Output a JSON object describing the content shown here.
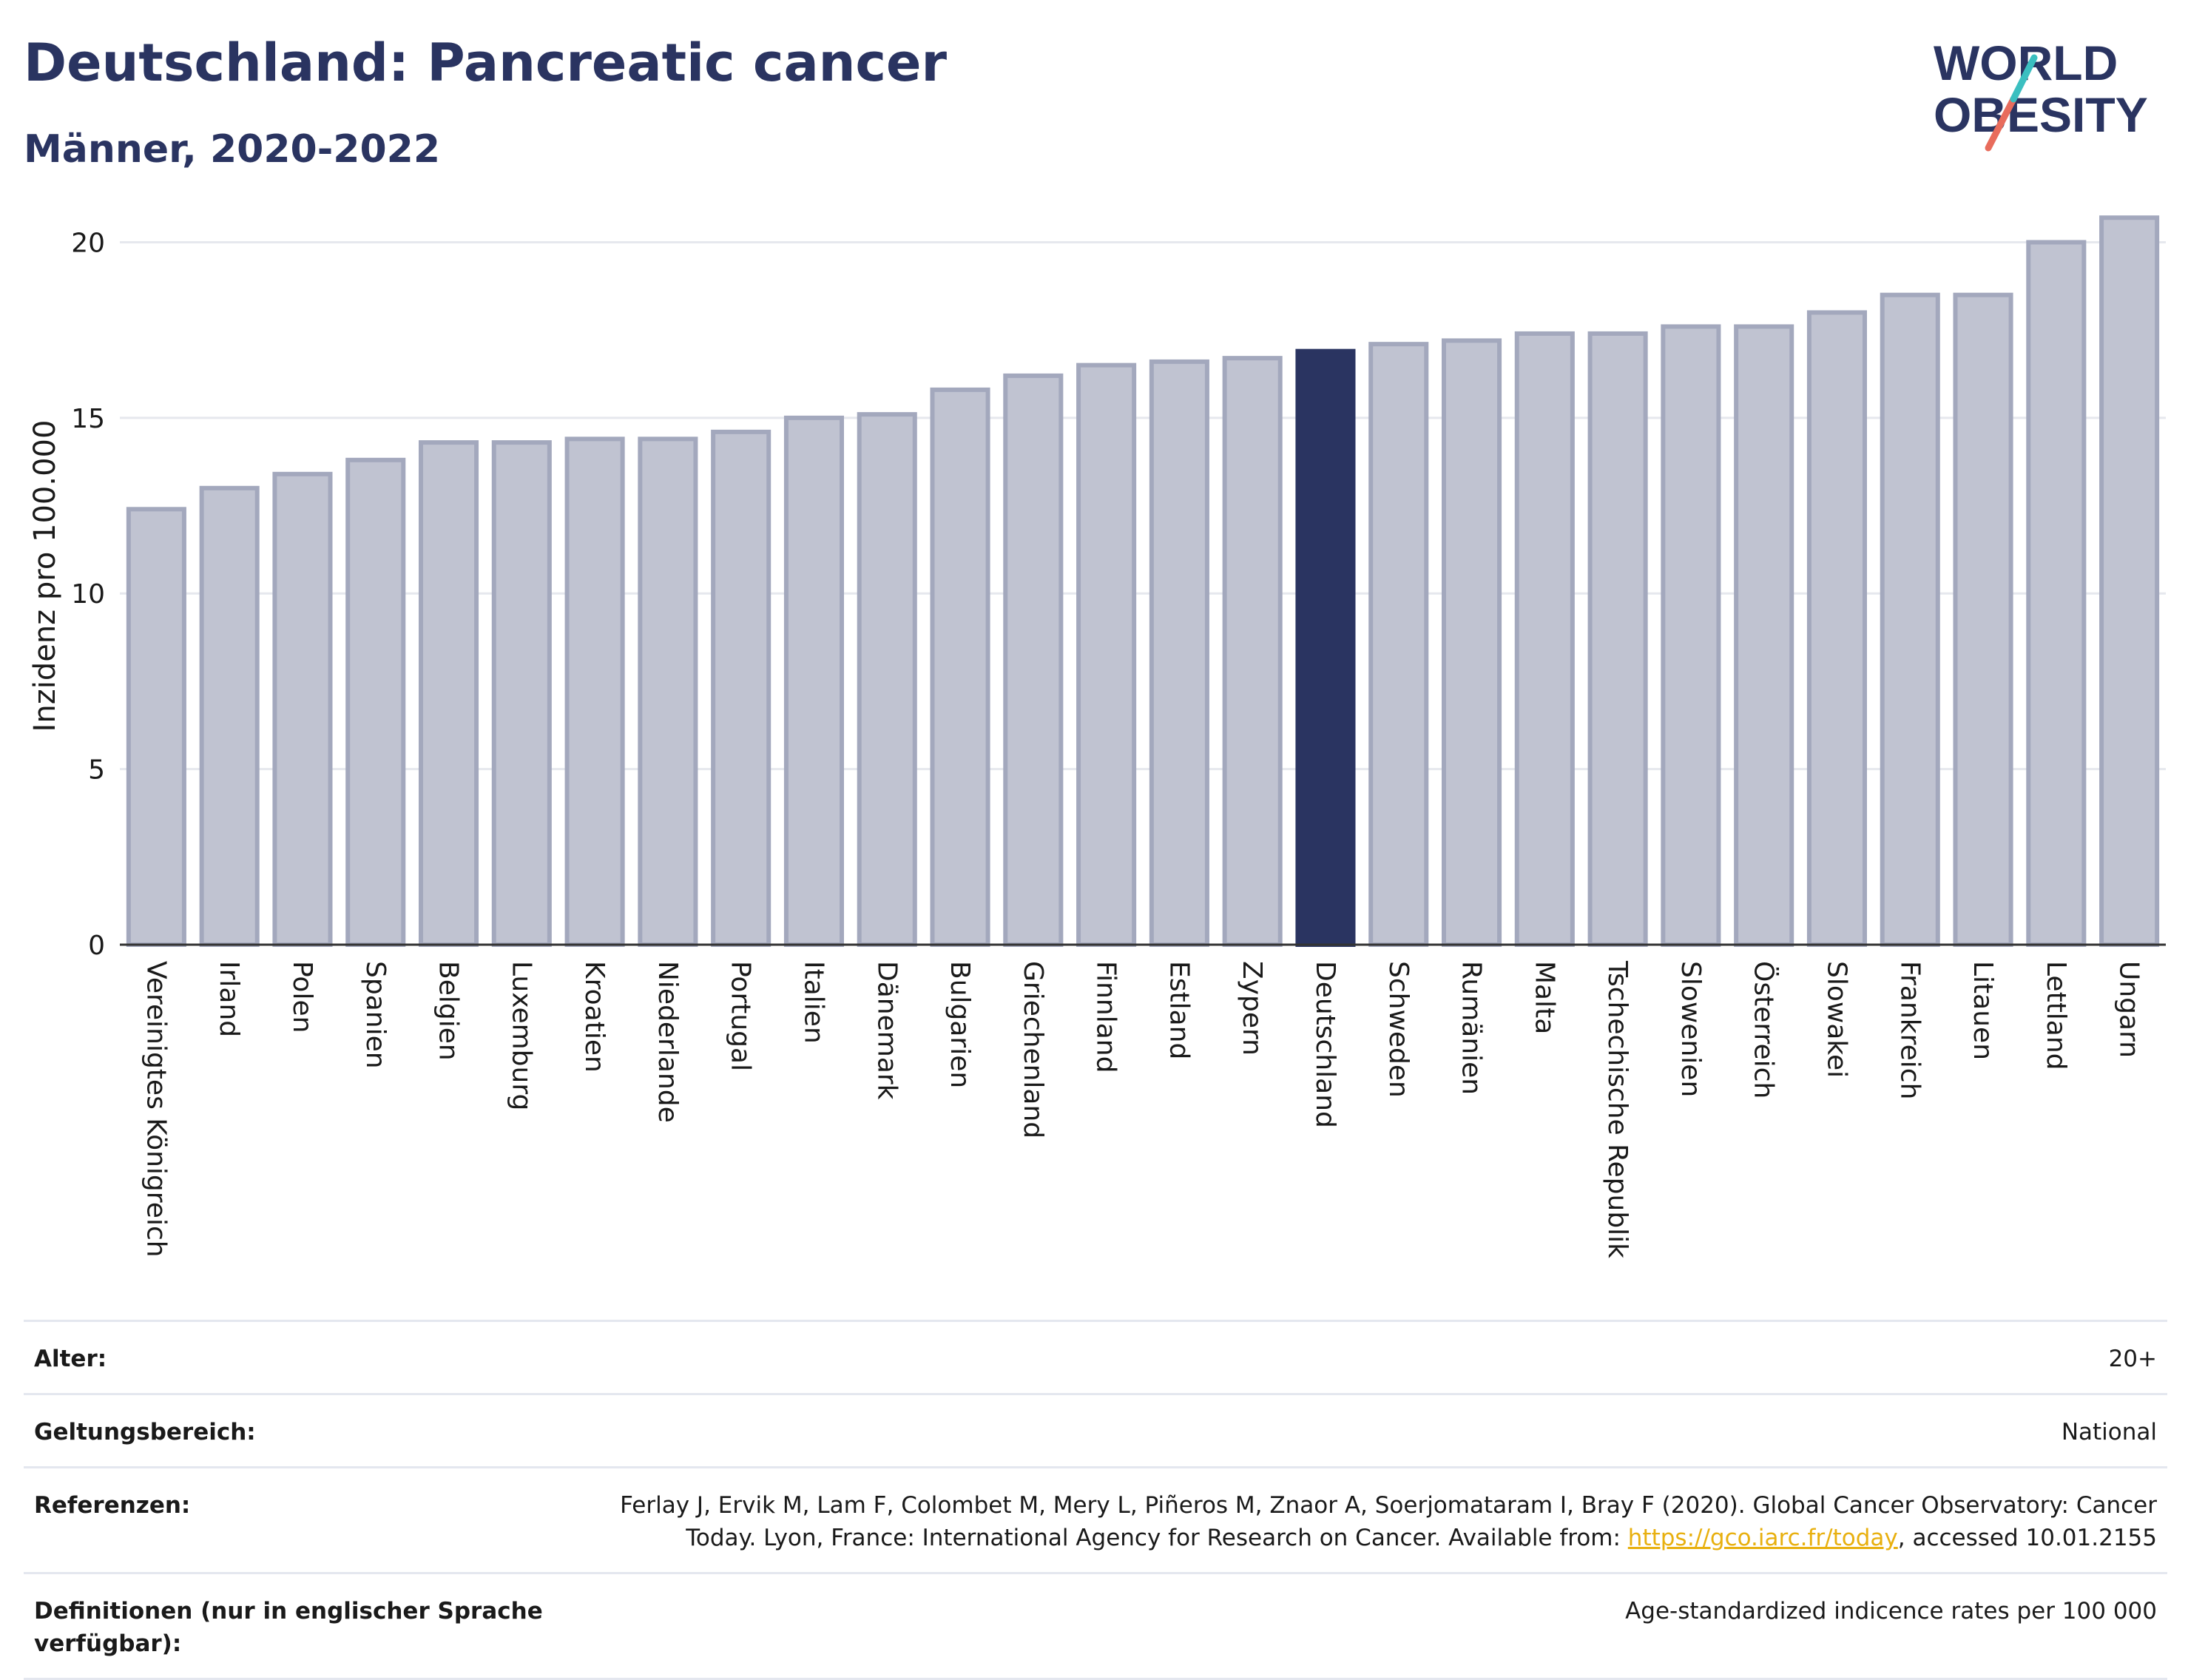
{
  "header": {
    "title": "Deutschland: Pancreatic cancer",
    "subtitle": "Männer, 2020-2022"
  },
  "logo": {
    "line1": "WORLD",
    "line2": "OBESITY",
    "colors": [
      "#2a3461",
      "#3bbfc0",
      "#e86c5c"
    ]
  },
  "chart_data": {
    "type": "bar",
    "ylabel": "Inzidenz pro 100.000",
    "ylim": [
      0,
      21
    ],
    "yticks": [
      0,
      5,
      10,
      15,
      20
    ],
    "grid": true,
    "highlight": "Deutschland",
    "colors": {
      "bar": "#c0c3d1",
      "bar_edge": "#a3a8bd",
      "highlight": "#2a3461",
      "grid": "#e6e8ee"
    },
    "categories": [
      "Vereinigtes Königreich",
      "Irland",
      "Polen",
      "Spanien",
      "Belgien",
      "Luxemburg",
      "Kroatien",
      "Niederlande",
      "Portugal",
      "Italien",
      "Dänemark",
      "Bulgarien",
      "Griechenland",
      "Finnland",
      "Estland",
      "Zypern",
      "Deutschland",
      "Schweden",
      "Rumänien",
      "Malta",
      "Tschechische Republik",
      "Slowenien",
      "Österreich",
      "Slowakei",
      "Frankreich",
      "Litauen",
      "Lettland",
      "Ungarn"
    ],
    "values": [
      12.4,
      13.0,
      13.4,
      13.8,
      14.3,
      14.3,
      14.4,
      14.4,
      14.6,
      15.0,
      15.1,
      15.8,
      16.2,
      16.5,
      16.6,
      16.7,
      16.9,
      17.1,
      17.2,
      17.4,
      17.4,
      17.6,
      17.6,
      18.0,
      18.5,
      18.5,
      20.0,
      20.7
    ]
  },
  "meta": {
    "rows": [
      {
        "label": "Alter:",
        "value": "20+"
      },
      {
        "label": "Geltungsbereich:",
        "value": "National"
      },
      {
        "label": "Referenzen:",
        "value_pre": "Ferlay J, Ervik M, Lam F, Colombet M, Mery L, Piñeros M, Znaor A, Soerjomataram I, Bray F (2020). Global Cancer Observatory: Cancer Today. Lyon, France: International Agency for Research on Cancer. Available from: ",
        "link": "https://gco.iarc.fr/today",
        "value_post": ", accessed 10.01.2155"
      },
      {
        "label": "Definitionen (nur in englischer Sprache verfügbar):",
        "value": "Age-standardized indicence rates per 100 000"
      }
    ]
  }
}
